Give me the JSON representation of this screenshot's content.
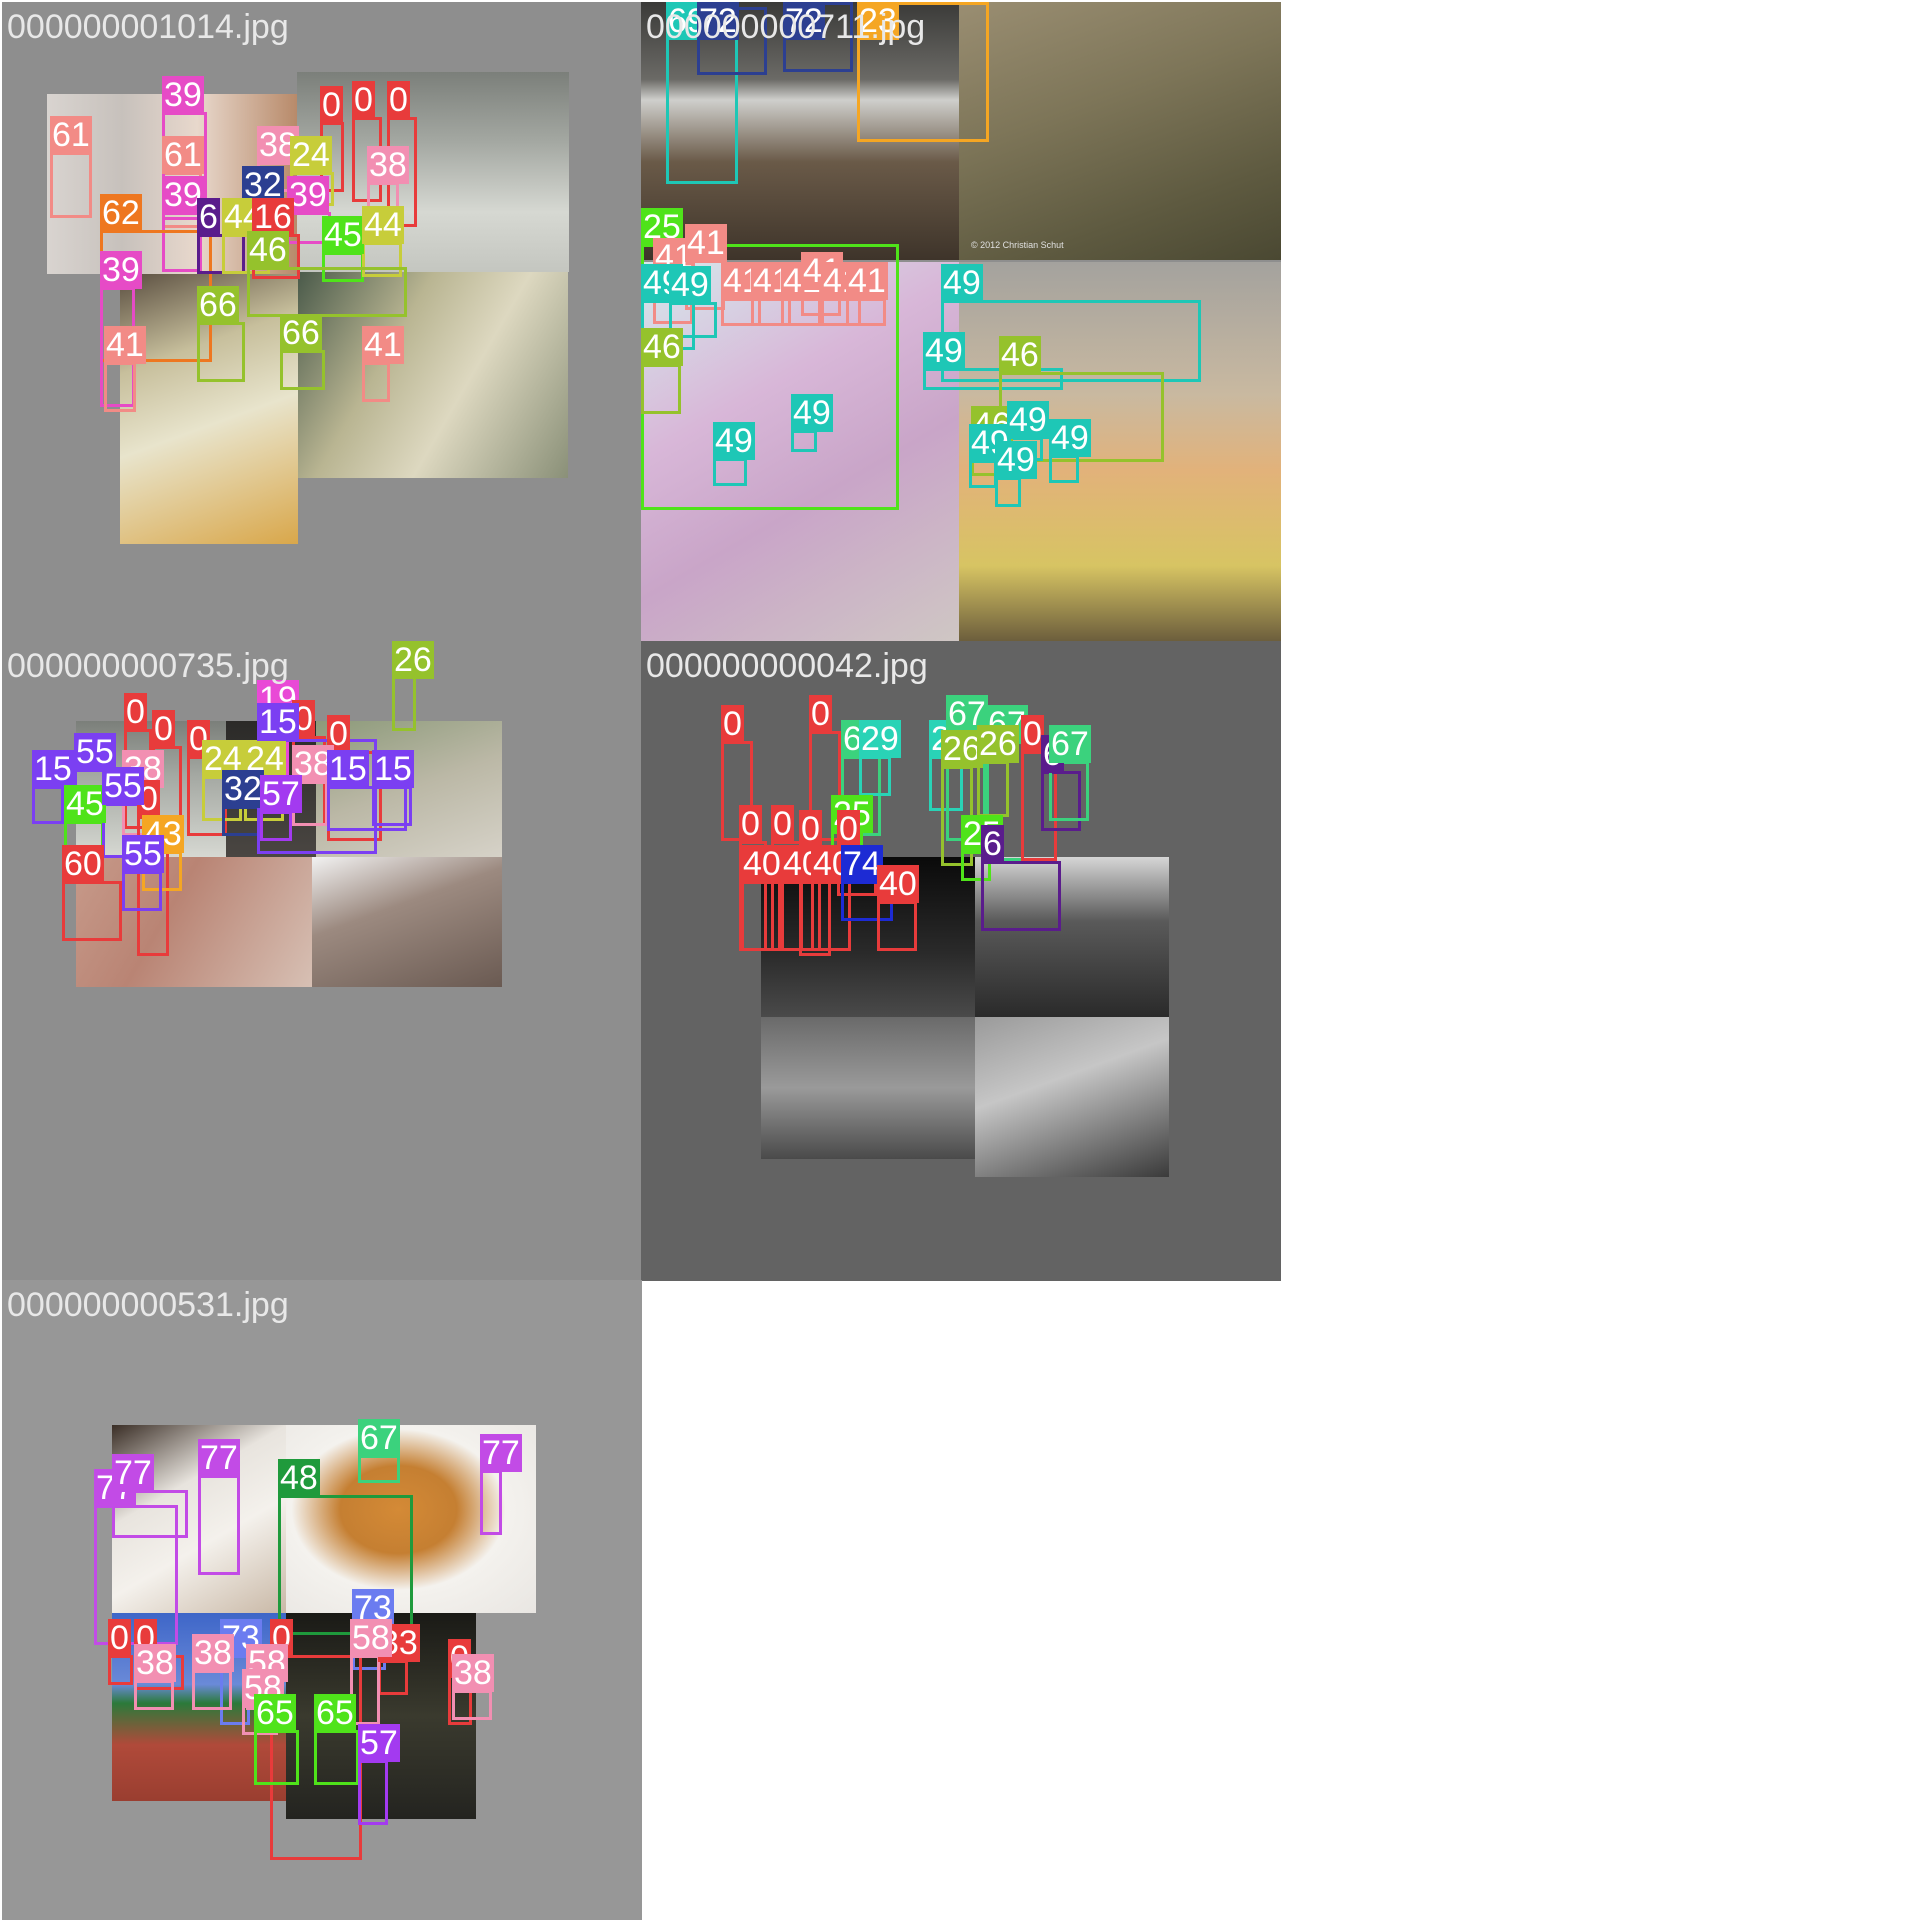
{
  "tiles": [
    {
      "filename": "000000001014.jpg",
      "background": "#8e8e8e"
    },
    {
      "filename": "000000000711.jpg",
      "background": "#8e8e8e"
    },
    {
      "filename": "000000000735.jpg",
      "background": "#8e8e8e"
    },
    {
      "filename": "000000000042.jpg",
      "background": "#636363"
    },
    {
      "filename": "000000000531.jpg",
      "background": "#979797"
    }
  ],
  "palette": {
    "0": "#e83b3b",
    "6": "#5a1c8c",
    "15": "#7b3ff2",
    "19": "#e94ad6",
    "23": "#f5a623",
    "24": "#c7cd3a",
    "25": "#4fe31a",
    "26": "#95c22c",
    "29": "#29d3b6",
    "32": "#2c3f91",
    "38": "#f28fb2",
    "39": "#e64bc6",
    "40": "#e83b3b",
    "41": "#f28b86",
    "43": "#f5a623",
    "44": "#c7cd3a",
    "45": "#4fe31a",
    "46": "#95c22c",
    "48": "#1f9a3c",
    "49": "#1ec7b6",
    "55": "#7b3ff2",
    "57": "#a33af0",
    "58": "#f28fb2",
    "60": "#e83b3b",
    "61": "#f28b86",
    "62": "#ee7720",
    "65": "#4fe31a",
    "66": "#95c22c",
    "67": "#3bd27d",
    "69": "#1ec7b6",
    "72": "#2c3f91",
    "73": "#6b7cf0",
    "74": "#1d2bd4",
    "77": "#c24be6"
  },
  "watermark": "© 2012 Christian Schut",
  "detections": [
    [
      {
        "c": "61"
      },
      {
        "c": "61"
      },
      {
        "c": "39"
      },
      {
        "c": "39"
      },
      {
        "c": "62"
      },
      {
        "c": "39"
      },
      {
        "c": "41"
      },
      {
        "c": "41"
      },
      {
        "c": "0"
      },
      {
        "c": "0"
      },
      {
        "c": "0"
      },
      {
        "c": "38"
      },
      {
        "c": "38"
      },
      {
        "c": "24"
      },
      {
        "c": "32"
      },
      {
        "c": "39"
      },
      {
        "c": "6"
      },
      {
        "c": "44"
      },
      {
        "c": "16"
      },
      {
        "c": "45"
      },
      {
        "c": "44"
      },
      {
        "c": "46"
      },
      {
        "c": "66"
      },
      {
        "c": "66"
      }
    ],
    [
      {
        "c": "69"
      },
      {
        "c": "72"
      },
      {
        "c": "72"
      },
      {
        "c": "23"
      },
      {
        "c": "25"
      },
      {
        "c": "41"
      },
      {
        "c": "41"
      },
      {
        "c": "49"
      },
      {
        "c": "49"
      },
      {
        "c": "46"
      },
      {
        "c": "49"
      },
      {
        "c": "49"
      },
      {
        "c": "41"
      },
      {
        "c": "41"
      },
      {
        "c": "41"
      },
      {
        "c": "41"
      },
      {
        "c": "41"
      },
      {
        "c": "41"
      },
      {
        "c": "49"
      },
      {
        "c": "49"
      },
      {
        "c": "46"
      },
      {
        "c": "46"
      },
      {
        "c": "49"
      },
      {
        "c": "49"
      },
      {
        "c": "49"
      },
      {
        "c": "49"
      }
    ],
    [
      {
        "c": "0"
      },
      {
        "c": "0"
      },
      {
        "c": "0"
      },
      {
        "c": "19"
      },
      {
        "c": "0"
      },
      {
        "c": "0"
      },
      {
        "c": "26"
      },
      {
        "c": "38"
      },
      {
        "c": "24"
      },
      {
        "c": "24"
      },
      {
        "c": "32"
      },
      {
        "c": "38"
      },
      {
        "c": "57"
      },
      {
        "c": "0"
      },
      {
        "c": "15"
      },
      {
        "c": "15"
      },
      {
        "c": "15"
      },
      {
        "c": "15"
      },
      {
        "c": "55"
      },
      {
        "c": "45"
      },
      {
        "c": "55"
      },
      {
        "c": "43"
      },
      {
        "c": "60"
      },
      {
        "c": "55"
      }
    ],
    [
      {
        "c": "0"
      },
      {
        "c": "0"
      },
      {
        "c": "67"
      },
      {
        "c": "29"
      },
      {
        "c": "29"
      },
      {
        "c": "67"
      },
      {
        "c": "67"
      },
      {
        "c": "0"
      },
      {
        "c": "6"
      },
      {
        "c": "26"
      },
      {
        "c": "26"
      },
      {
        "c": "67"
      },
      {
        "c": "0"
      },
      {
        "c": "0"
      },
      {
        "c": "0"
      },
      {
        "c": "25"
      },
      {
        "c": "0"
      },
      {
        "c": "40"
      },
      {
        "c": "40"
      },
      {
        "c": "40"
      },
      {
        "c": "74"
      },
      {
        "c": "25"
      },
      {
        "c": "6"
      },
      {
        "c": "40"
      }
    ],
    [
      {
        "c": "77"
      },
      {
        "c": "77"
      },
      {
        "c": "77"
      },
      {
        "c": "48"
      },
      {
        "c": "67"
      },
      {
        "c": "77"
      },
      {
        "c": "73"
      },
      {
        "c": "73"
      },
      {
        "c": "33"
      },
      {
        "c": "0"
      },
      {
        "c": "58"
      },
      {
        "c": "58"
      },
      {
        "c": "58"
      },
      {
        "c": "0"
      },
      {
        "c": "0"
      },
      {
        "c": "38"
      },
      {
        "c": "38"
      },
      {
        "c": "0"
      },
      {
        "c": "38"
      },
      {
        "c": "65"
      },
      {
        "c": "65"
      },
      {
        "c": "57"
      }
    ]
  ]
}
